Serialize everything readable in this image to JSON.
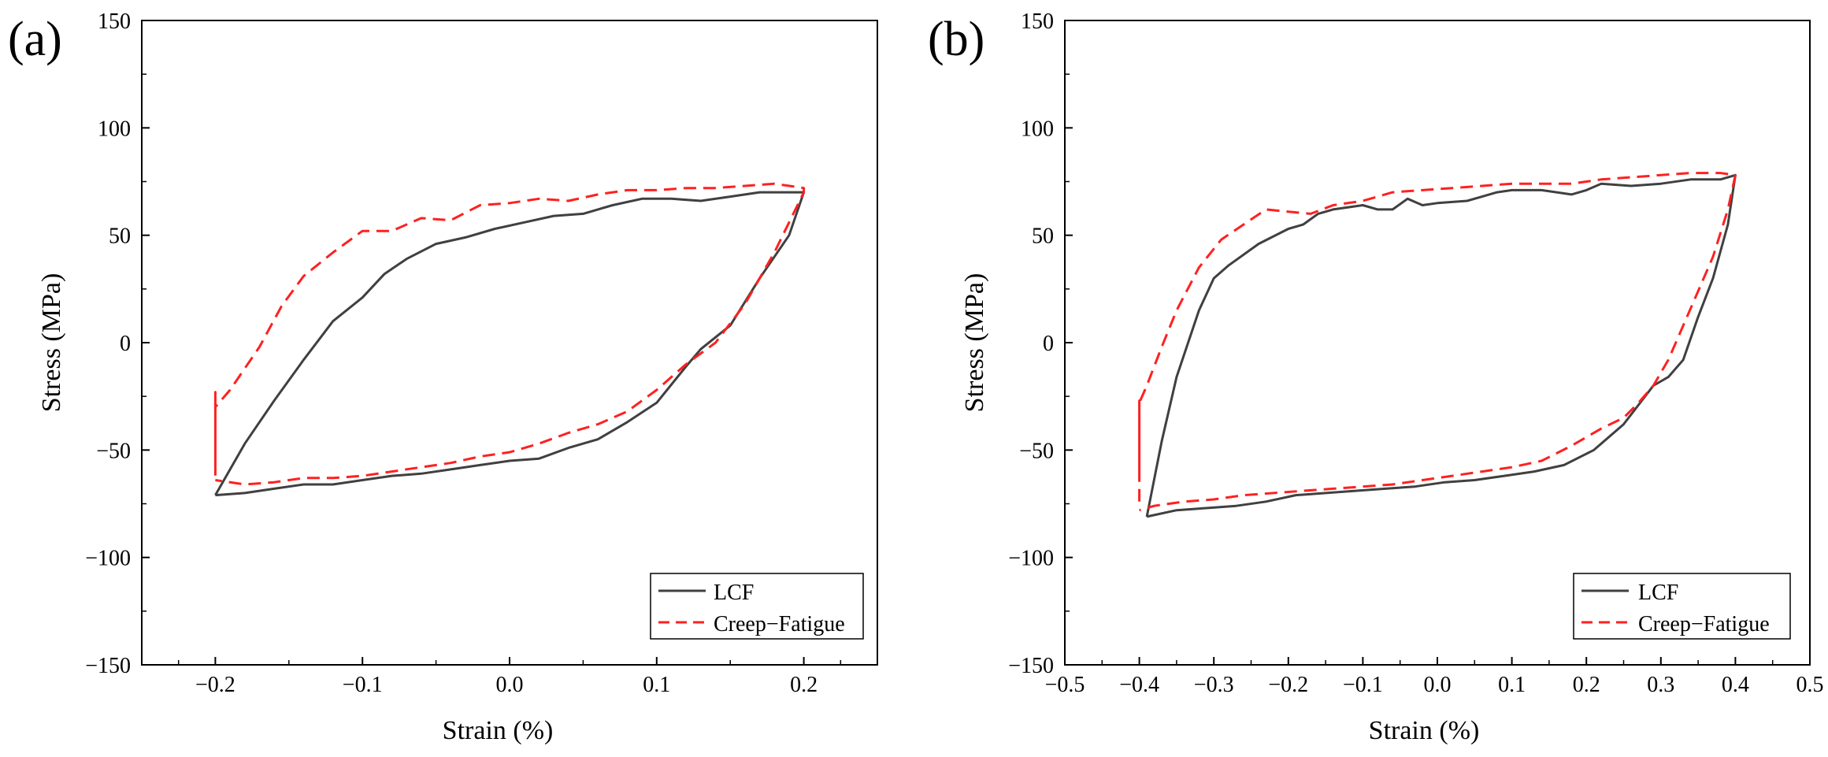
{
  "chart_data": [
    {
      "panel_label": "(a)",
      "type": "line",
      "title": "",
      "xlabel": "Strain (%)",
      "ylabel": "Stress (MPa)",
      "xlim": [
        -0.25,
        0.25
      ],
      "ylim": [
        -150,
        150
      ],
      "xticks": [
        -0.2,
        -0.1,
        0.0,
        0.1,
        0.2
      ],
      "xtick_labels": [
        "−0.2",
        "−0.1",
        "0.0",
        "0.1",
        "0.2"
      ],
      "yticks": [
        -150,
        -100,
        -50,
        0,
        50,
        100,
        150
      ],
      "ytick_labels": [
        "−150",
        "−100",
        "−50",
        "0",
        "50",
        "100",
        "150"
      ],
      "legend_position": "bottom-right",
      "grid": false,
      "series": [
        {
          "name": "LCF",
          "style": "solid",
          "color": "#404040",
          "x": [
            -0.2,
            -0.18,
            -0.16,
            -0.14,
            -0.12,
            -0.1,
            -0.085,
            -0.07,
            -0.05,
            -0.03,
            -0.01,
            0.01,
            0.03,
            0.05,
            0.07,
            0.09,
            0.11,
            0.13,
            0.15,
            0.17,
            0.19,
            0.2,
            0.19,
            0.17,
            0.15,
            0.13,
            0.12,
            0.1,
            0.08,
            0.06,
            0.04,
            0.02,
            0.0,
            -0.02,
            -0.04,
            -0.06,
            -0.08,
            -0.1,
            -0.12,
            -0.14,
            -0.16,
            -0.18,
            -0.2
          ],
          "y": [
            -71,
            -47,
            -27,
            -8,
            10,
            21,
            32,
            39,
            46,
            49,
            53,
            56,
            59,
            60,
            64,
            67,
            67,
            66,
            68,
            70,
            70,
            70,
            50,
            30,
            8,
            -3,
            -11,
            -28,
            -37,
            -45,
            -49,
            -54,
            -55,
            -57,
            -59,
            -61,
            -62,
            -64,
            -66,
            -66,
            -68,
            -70,
            -71
          ]
        },
        {
          "name": "Creep−Fatigue",
          "style": "dashed",
          "color": "#ff2020",
          "x": [
            -0.2,
            -0.2,
            -0.2,
            -0.2,
            -0.2,
            -0.2,
            -0.19,
            -0.17,
            -0.155,
            -0.14,
            -0.12,
            -0.1,
            -0.08,
            -0.06,
            -0.04,
            -0.02,
            0.0,
            0.02,
            0.04,
            0.06,
            0.08,
            0.1,
            0.12,
            0.14,
            0.16,
            0.18,
            0.2,
            0.2,
            0.18,
            0.16,
            0.14,
            0.12,
            0.1,
            0.08,
            0.06,
            0.04,
            0.02,
            0.0,
            -0.02,
            -0.04,
            -0.06,
            -0.08,
            -0.1,
            -0.12,
            -0.14,
            -0.16,
            -0.18,
            -0.2
          ],
          "y": [
            -55,
            -23,
            -52,
            -28,
            -62,
            -30,
            -22,
            -2,
            17,
            31,
            42,
            52,
            52,
            58,
            57,
            64,
            65,
            67,
            66,
            69,
            71,
            71,
            72,
            72,
            73,
            74,
            72,
            70,
            42,
            18,
            0,
            -10,
            -22,
            -32,
            -38,
            -42,
            -47,
            -51,
            -53,
            -56,
            -58,
            -60,
            -62,
            -63,
            -63,
            -65,
            -66,
            -64
          ]
        }
      ]
    },
    {
      "panel_label": "(b)",
      "type": "line",
      "title": "",
      "xlabel": "Strain (%)",
      "ylabel": "Stress (MPa)",
      "xlim": [
        -0.5,
        0.5
      ],
      "ylim": [
        -150,
        150
      ],
      "xticks": [
        -0.5,
        -0.4,
        -0.3,
        -0.2,
        -0.1,
        0.0,
        0.1,
        0.2,
        0.3,
        0.4,
        0.5
      ],
      "xtick_labels": [
        "−0.5",
        "−0.4",
        "−0.3",
        "−0.2",
        "−0.1",
        "0.0",
        "0.1",
        "0.2",
        "0.3",
        "0.4",
        "0.5"
      ],
      "yticks": [
        -150,
        -100,
        -50,
        0,
        50,
        100,
        150
      ],
      "ytick_labels": [
        "−150",
        "−100",
        "−50",
        "0",
        "50",
        "100",
        "150"
      ],
      "legend_position": "bottom-right",
      "grid": false,
      "series": [
        {
          "name": "LCF",
          "style": "solid",
          "color": "#404040",
          "x": [
            -0.39,
            -0.37,
            -0.35,
            -0.32,
            -0.3,
            -0.28,
            -0.24,
            -0.2,
            -0.18,
            -0.16,
            -0.14,
            -0.1,
            -0.08,
            -0.06,
            -0.04,
            -0.02,
            0.0,
            0.04,
            0.06,
            0.08,
            0.1,
            0.14,
            0.18,
            0.2,
            0.22,
            0.26,
            0.3,
            0.34,
            0.38,
            0.4,
            0.39,
            0.37,
            0.35,
            0.33,
            0.31,
            0.29,
            0.25,
            0.21,
            0.17,
            0.13,
            0.09,
            0.05,
            0.01,
            -0.03,
            -0.07,
            -0.11,
            -0.15,
            -0.19,
            -0.23,
            -0.27,
            -0.31,
            -0.35,
            -0.39
          ],
          "y": [
            -81,
            -46,
            -16,
            15,
            30,
            36,
            46,
            53,
            55,
            60,
            62,
            64,
            62,
            62,
            67,
            64,
            65,
            66,
            68,
            70,
            71,
            71,
            69,
            71,
            74,
            73,
            74,
            76,
            76,
            78,
            55,
            30,
            12,
            -8,
            -16,
            -20,
            -38,
            -50,
            -57,
            -60,
            -62,
            -64,
            -65,
            -67,
            -68,
            -69,
            -70,
            -71,
            -74,
            -76,
            -77,
            -78,
            -81
          ]
        },
        {
          "name": "Creep−Fatigue",
          "style": "dashed",
          "color": "#ff2020",
          "x": [
            -0.4,
            -0.4,
            -0.4,
            -0.4,
            -0.4,
            -0.4,
            -0.39,
            -0.37,
            -0.35,
            -0.32,
            -0.29,
            -0.26,
            -0.23,
            -0.2,
            -0.17,
            -0.14,
            -0.1,
            -0.06,
            -0.02,
            0.02,
            0.06,
            0.1,
            0.14,
            0.18,
            0.22,
            0.26,
            0.3,
            0.34,
            0.38,
            0.4,
            0.39,
            0.37,
            0.35,
            0.33,
            0.31,
            0.29,
            0.27,
            0.25,
            0.22,
            0.18,
            0.14,
            0.1,
            0.06,
            0.02,
            -0.02,
            -0.06,
            -0.1,
            -0.14,
            -0.18,
            -0.22,
            -0.26,
            -0.3,
            -0.34,
            -0.38,
            -0.4
          ],
          "y": [
            -74,
            -27,
            -61,
            -32,
            -57,
            -28,
            -20,
            -2,
            15,
            35,
            48,
            55,
            62,
            61,
            60,
            64,
            66,
            70,
            71,
            72,
            73,
            74,
            74,
            74,
            76,
            77,
            78,
            79,
            79,
            78,
            62,
            40,
            24,
            8,
            -8,
            -20,
            -28,
            -35,
            -40,
            -48,
            -55,
            -58,
            -60,
            -62,
            -64,
            -66,
            -67,
            -68,
            -69,
            -70,
            -71,
            -73,
            -74,
            -76,
            -78
          ]
        }
      ]
    }
  ]
}
